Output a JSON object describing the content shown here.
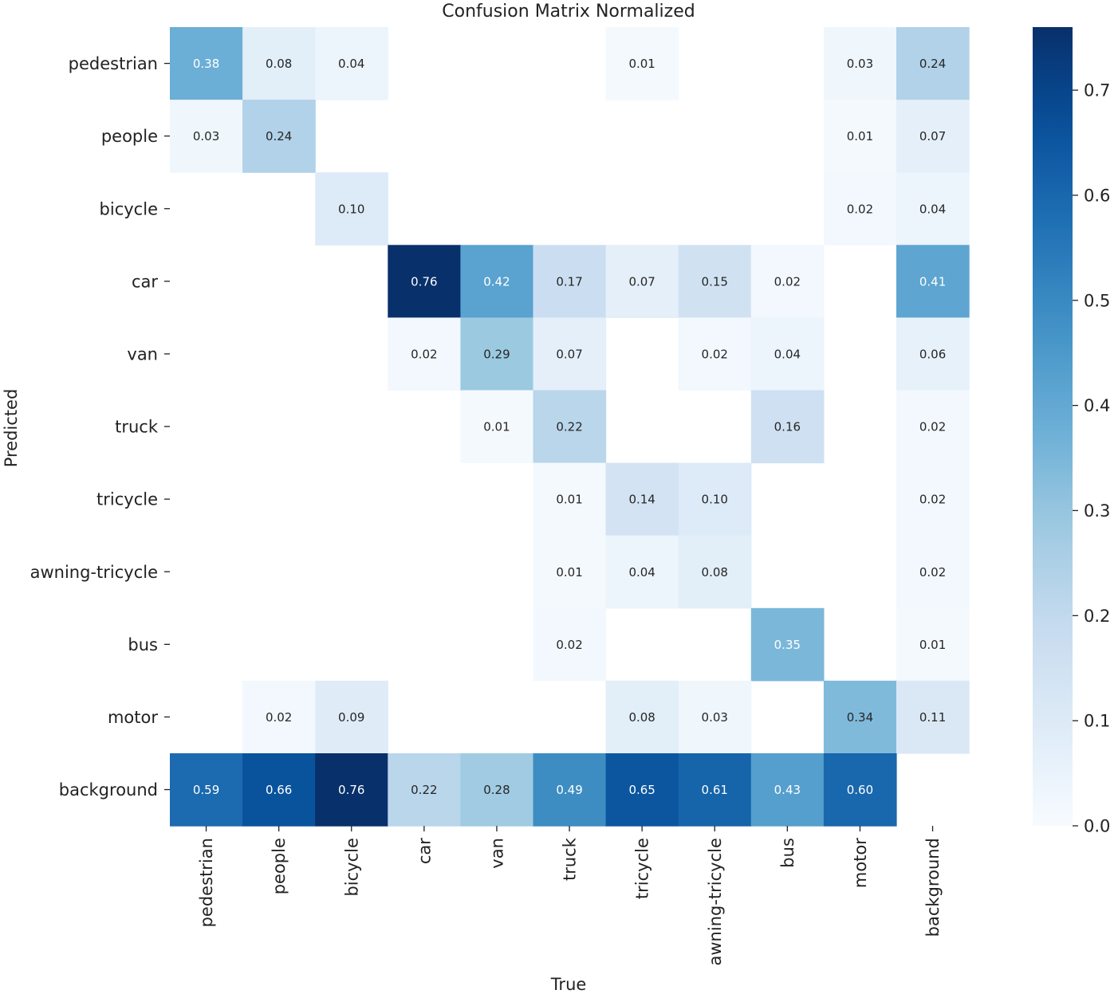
{
  "chart_data": {
    "type": "heatmap",
    "title": "Confusion Matrix Normalized",
    "xlabel": "True",
    "ylabel": "Predicted",
    "x_categories": [
      "pedestrian",
      "people",
      "bicycle",
      "car",
      "van",
      "truck",
      "tricycle",
      "awning-tricycle",
      "bus",
      "motor",
      "background"
    ],
    "y_categories": [
      "pedestrian",
      "people",
      "bicycle",
      "car",
      "van",
      "truck",
      "tricycle",
      "awning-tricycle",
      "bus",
      "motor",
      "background"
    ],
    "values": [
      [
        0.38,
        0.08,
        0.04,
        null,
        null,
        null,
        0.01,
        null,
        null,
        0.03,
        0.24
      ],
      [
        0.03,
        0.24,
        null,
        null,
        null,
        null,
        null,
        null,
        null,
        0.01,
        0.07
      ],
      [
        null,
        null,
        0.1,
        null,
        null,
        null,
        null,
        null,
        null,
        0.02,
        0.04
      ],
      [
        null,
        null,
        null,
        0.76,
        0.42,
        0.17,
        0.07,
        0.15,
        0.02,
        null,
        0.41
      ],
      [
        null,
        null,
        null,
        0.02,
        0.29,
        0.07,
        null,
        0.02,
        0.04,
        null,
        0.06
      ],
      [
        null,
        null,
        null,
        null,
        0.01,
        0.22,
        null,
        null,
        0.16,
        null,
        0.02
      ],
      [
        null,
        null,
        null,
        null,
        null,
        0.01,
        0.14,
        0.1,
        null,
        null,
        0.02
      ],
      [
        null,
        null,
        null,
        null,
        null,
        0.01,
        0.04,
        0.08,
        null,
        null,
        0.02
      ],
      [
        null,
        null,
        null,
        null,
        null,
        0.02,
        null,
        null,
        0.35,
        null,
        0.01
      ],
      [
        null,
        0.02,
        0.09,
        null,
        null,
        null,
        0.08,
        0.03,
        null,
        0.34,
        0.11
      ],
      [
        0.59,
        0.66,
        0.76,
        0.22,
        0.28,
        0.49,
        0.65,
        0.61,
        0.43,
        0.6,
        null
      ]
    ],
    "colorbar": {
      "range": [
        0,
        0.76
      ],
      "ticks": [
        0.0,
        0.1,
        0.2,
        0.3,
        0.4,
        0.5,
        0.6,
        0.7
      ],
      "tick_labels": [
        "0.0",
        "0.1",
        "0.2",
        "0.3",
        "0.4",
        "0.5",
        "0.6",
        "0.7"
      ],
      "colormap": "Blues",
      "color_low": "#f7fbff",
      "color_high": "#08306b"
    }
  }
}
